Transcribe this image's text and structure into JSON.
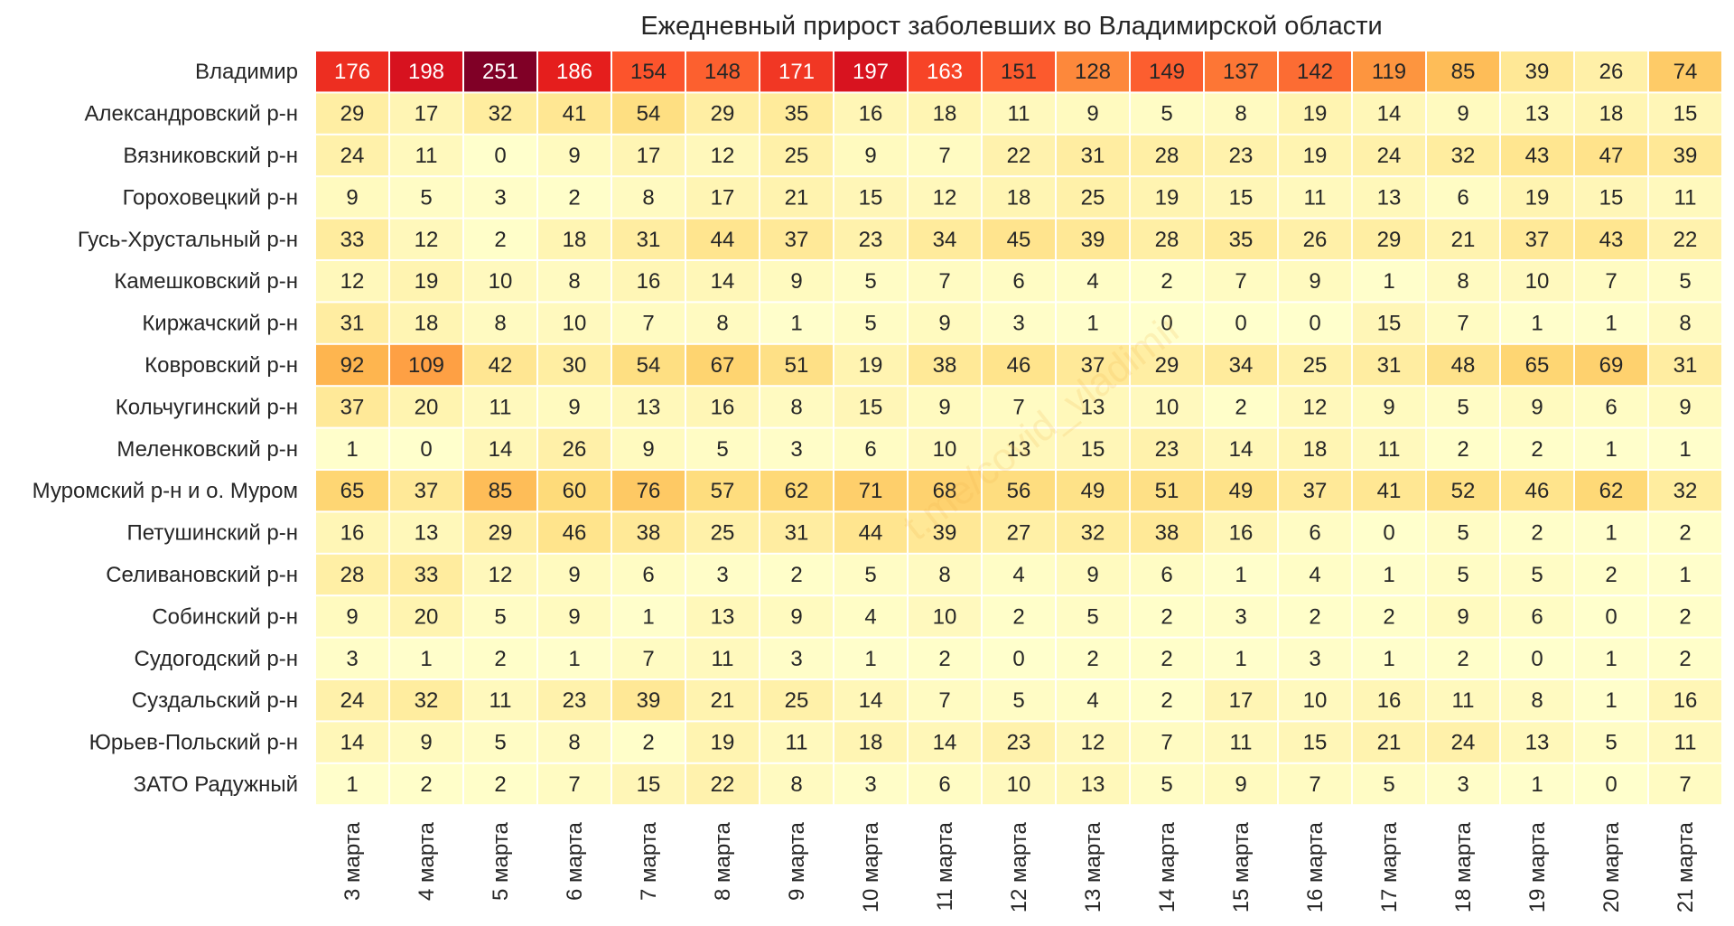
{
  "chart_data": {
    "type": "heatmap",
    "title": "Ежедневный прирост заболевших во Владимирской области",
    "watermark": "t.me/covid_vladimir",
    "columns": [
      "3 марта",
      "4 марта",
      "5 марта",
      "6 марта",
      "7 марта",
      "8 марта",
      "9 марта",
      "10 марта",
      "11 марта",
      "12 марта",
      "13 марта",
      "14 марта",
      "15 марта",
      "16 марта",
      "17 марта",
      "18 марта",
      "19 марта",
      "20 марта",
      "21 марта"
    ],
    "rows": [
      "Владимир",
      "Александровский р-н",
      "Вязниковский р-н",
      "Гороховецкий р-н",
      "Гусь-Хрустальный р-н",
      "Камешковский р-н",
      "Киржачский р-н",
      "Ковровский р-н",
      "Кольчугинский р-н",
      "Меленковский р-н",
      "Муромский р-н и о. Муром",
      "Петушинский р-н",
      "Селивановский р-н",
      "Собинский р-н",
      "Судогодский р-н",
      "Суздальский р-н",
      "Юрьев-Польский р-н",
      "ЗАТО Радужный"
    ],
    "values": [
      [
        176,
        198,
        251,
        186,
        154,
        148,
        171,
        197,
        163,
        151,
        128,
        149,
        137,
        142,
        119,
        85,
        39,
        26,
        74
      ],
      [
        29,
        17,
        32,
        41,
        54,
        29,
        35,
        16,
        18,
        11,
        9,
        5,
        8,
        19,
        14,
        9,
        13,
        18,
        15
      ],
      [
        24,
        11,
        0,
        9,
        17,
        12,
        25,
        9,
        7,
        22,
        31,
        28,
        23,
        19,
        24,
        32,
        43,
        47,
        39
      ],
      [
        9,
        5,
        3,
        2,
        8,
        17,
        21,
        15,
        12,
        18,
        25,
        19,
        15,
        11,
        13,
        6,
        19,
        15,
        11
      ],
      [
        33,
        12,
        2,
        18,
        31,
        44,
        37,
        23,
        34,
        45,
        39,
        28,
        35,
        26,
        29,
        21,
        37,
        43,
        22
      ],
      [
        12,
        19,
        10,
        8,
        16,
        14,
        9,
        5,
        7,
        6,
        4,
        2,
        7,
        9,
        1,
        8,
        10,
        7,
        5
      ],
      [
        31,
        18,
        8,
        10,
        7,
        8,
        1,
        5,
        9,
        3,
        1,
        0,
        0,
        0,
        15,
        7,
        1,
        1,
        8
      ],
      [
        92,
        109,
        42,
        30,
        54,
        67,
        51,
        19,
        38,
        46,
        37,
        29,
        34,
        25,
        31,
        48,
        65,
        69,
        31
      ],
      [
        37,
        20,
        11,
        9,
        13,
        16,
        8,
        15,
        9,
        7,
        13,
        10,
        2,
        12,
        9,
        5,
        9,
        6,
        9
      ],
      [
        1,
        0,
        14,
        26,
        9,
        5,
        3,
        6,
        10,
        13,
        15,
        23,
        14,
        18,
        11,
        2,
        2,
        1,
        1
      ],
      [
        65,
        37,
        85,
        60,
        76,
        57,
        62,
        71,
        68,
        56,
        49,
        51,
        49,
        37,
        41,
        52,
        46,
        62,
        32
      ],
      [
        16,
        13,
        29,
        46,
        38,
        25,
        31,
        44,
        39,
        27,
        32,
        38,
        16,
        6,
        0,
        5,
        2,
        1,
        2
      ],
      [
        28,
        33,
        12,
        9,
        6,
        3,
        2,
        5,
        8,
        4,
        9,
        6,
        1,
        4,
        1,
        5,
        5,
        2,
        1
      ],
      [
        9,
        20,
        5,
        9,
        1,
        13,
        9,
        4,
        10,
        2,
        5,
        2,
        3,
        2,
        2,
        9,
        6,
        0,
        2
      ],
      [
        3,
        1,
        2,
        1,
        7,
        11,
        3,
        1,
        2,
        0,
        2,
        2,
        1,
        3,
        1,
        2,
        0,
        1,
        2
      ],
      [
        24,
        32,
        11,
        23,
        39,
        21,
        25,
        14,
        7,
        5,
        4,
        2,
        17,
        10,
        16,
        11,
        8,
        1,
        16
      ],
      [
        14,
        9,
        5,
        8,
        2,
        19,
        11,
        18,
        14,
        23,
        12,
        7,
        11,
        15,
        21,
        24,
        13,
        5,
        11
      ],
      [
        1,
        2,
        2,
        7,
        15,
        22,
        8,
        3,
        6,
        10,
        13,
        5,
        9,
        7,
        5,
        3,
        1,
        0,
        7
      ]
    ],
    "colormap": "YlOrRd",
    "vmin": 0,
    "vmax": 251,
    "grid_color": "#ffffff"
  }
}
